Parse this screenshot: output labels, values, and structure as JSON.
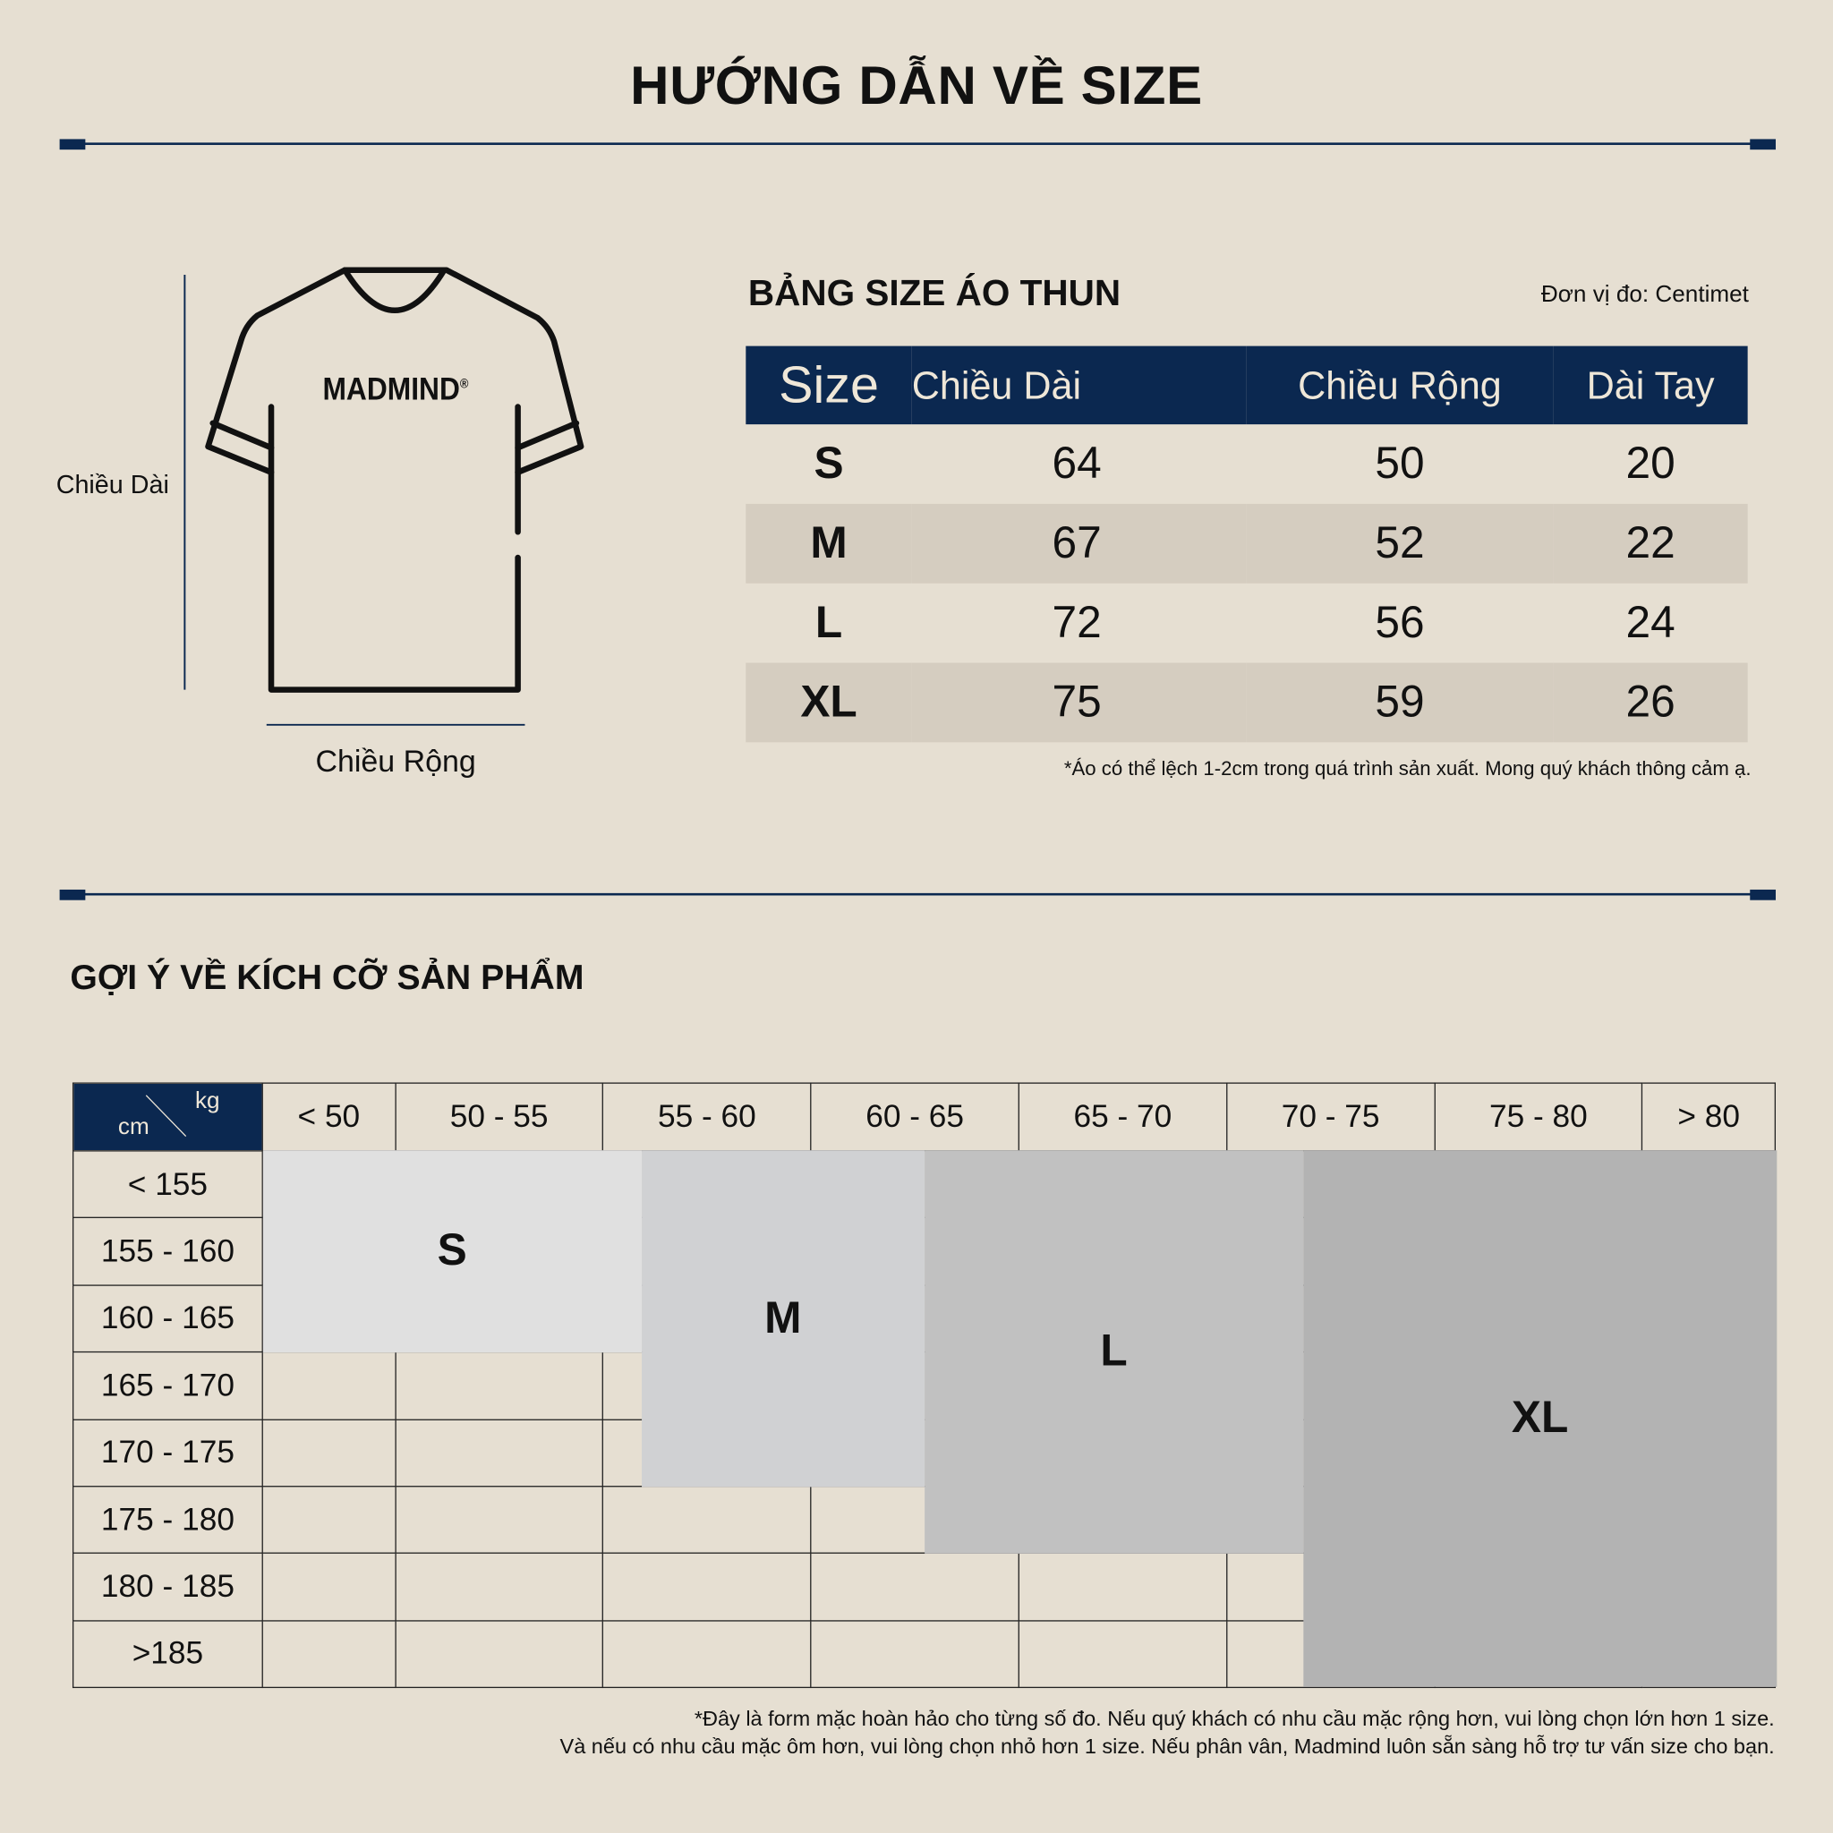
{
  "title": "HƯỚNG DẪN VỀ SIZE",
  "diagram": {
    "logo": "MADMIND",
    "logo_mark": "®",
    "length_label": "Chiều Dài",
    "width_label": "Chiều Rộng"
  },
  "size_table": {
    "title": "BẢNG SIZE ÁO THUN",
    "unit": "Đơn vị đo: Centimet",
    "headers": [
      "Size",
      "Chiều Dài",
      "Chiều Rộng",
      "Dài Tay"
    ],
    "rows": [
      [
        "S",
        "64",
        "50",
        "20"
      ],
      [
        "M",
        "67",
        "52",
        "22"
      ],
      [
        "L",
        "72",
        "56",
        "24"
      ],
      [
        "XL",
        "75",
        "59",
        "26"
      ]
    ],
    "note": "*Áo có thể lệch 1-2cm trong quá trình sản xuất. Mong quý khách thông cảm ạ."
  },
  "suggest": {
    "title": "GỢI Ý VỀ KÍCH CỠ SẢN PHẨM",
    "corner_kg": "kg",
    "corner_cm": "cm",
    "weights": [
      "< 50",
      "50 - 55",
      "55 - 60",
      "60 - 65",
      "65 - 70",
      "70 - 75",
      "75 - 80",
      "> 80"
    ],
    "heights": [
      "< 155",
      "155 - 160",
      "160 - 165",
      "165 - 170",
      "170 - 175",
      "175 - 180",
      "180 - 185",
      ">185"
    ],
    "sizes": [
      {
        "label": "S",
        "color": "#e0e0e0"
      },
      {
        "label": "M",
        "color": "#d0d1d3"
      },
      {
        "label": "L",
        "color": "#c1c1c1"
      },
      {
        "label": "XL",
        "color": "#b3b3b3"
      }
    ],
    "note_line1": "*Đây là form mặc hoàn hảo cho từng số đo. Nếu quý khách có nhu cầu mặc rộng hơn, vui lòng chọn lớn hơn 1 size.",
    "note_line2": "Và nếu có nhu cầu mặc ôm hơn, vui lòng chọn nhỏ hơn 1 size. Nếu phân vân, Madmind luôn sẵn sàng hỗ trợ tư vấn size cho bạn."
  },
  "colors": {
    "background": "#e6dfd2",
    "navy": "#0b2850",
    "row_alt": "#d5cdc0"
  }
}
